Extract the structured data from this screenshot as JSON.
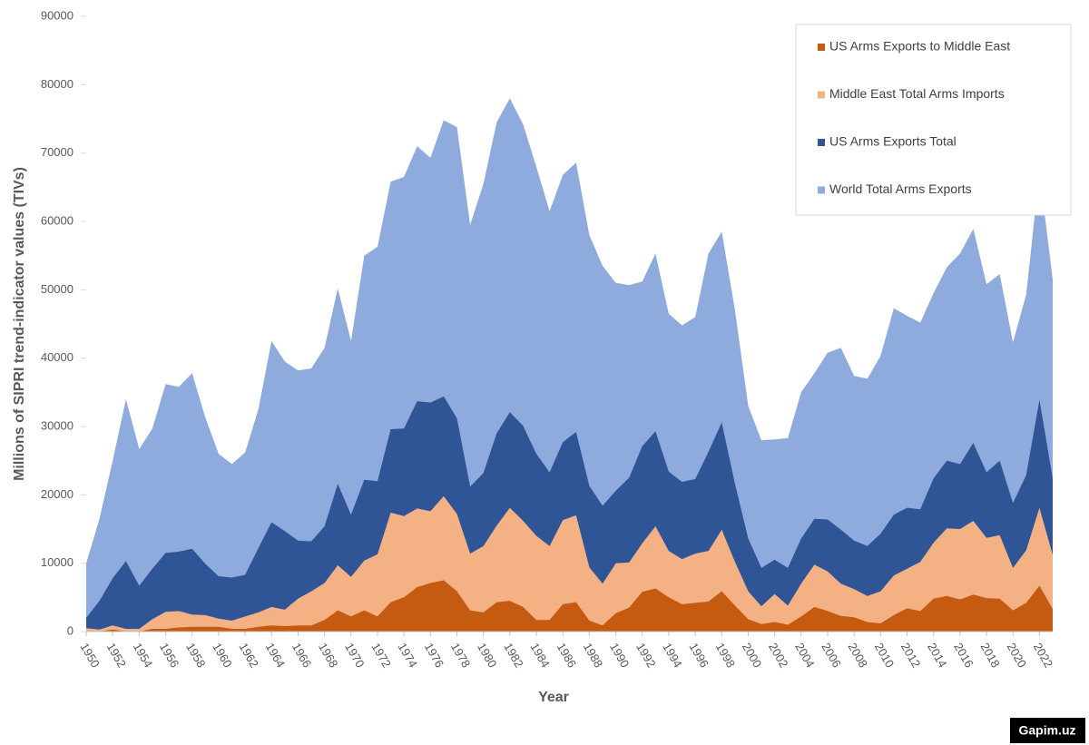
{
  "chart_data": {
    "type": "stacked-area",
    "x_label": "Year",
    "y_label": "Millions of SIPRI trend-indicator values (TIVs)",
    "legend": "top-right",
    "grid": false,
    "xlim": [
      1950,
      2023
    ],
    "xticks": [
      1950,
      1952,
      1954,
      1956,
      1958,
      1960,
      1962,
      1964,
      1966,
      1968,
      1970,
      1972,
      1974,
      1976,
      1978,
      1980,
      1982,
      1984,
      1986,
      1988,
      1990,
      1992,
      1994,
      1996,
      1998,
      2000,
      2002,
      2004,
      2006,
      2008,
      2010,
      2012,
      2014,
      2016,
      2018,
      2020,
      2022
    ],
    "ylim": [
      0,
      90000
    ],
    "yticks": [
      0,
      10000,
      20000,
      30000,
      40000,
      50000,
      60000,
      70000,
      80000,
      90000
    ],
    "x": [
      1950,
      1951,
      1952,
      1953,
      1954,
      1955,
      1956,
      1957,
      1958,
      1959,
      1960,
      1961,
      1962,
      1963,
      1964,
      1965,
      1966,
      1967,
      1968,
      1969,
      1970,
      1971,
      1972,
      1973,
      1974,
      1975,
      1976,
      1977,
      1978,
      1979,
      1980,
      1981,
      1982,
      1983,
      1984,
      1985,
      1986,
      1987,
      1988,
      1989,
      1990,
      1991,
      1992,
      1993,
      1994,
      1995,
      1996,
      1997,
      1998,
      1999,
      2000,
      2001,
      2002,
      2003,
      2004,
      2005,
      2006,
      2007,
      2008,
      2009,
      2010,
      2011,
      2012,
      2013,
      2014,
      2015,
      2016,
      2017,
      2018,
      2019,
      2020,
      2021,
      2022,
      2023
    ],
    "series": [
      {
        "name": "US Arms Exports to Middle East",
        "color": "#c55a11",
        "values": [
          0,
          0,
          300,
          0,
          0,
          400,
          400,
          600,
          700,
          700,
          700,
          400,
          400,
          700,
          900,
          800,
          900,
          900,
          1700,
          3100,
          2200,
          3100,
          2200,
          4300,
          5000,
          6500,
          7100,
          7500,
          5900,
          3100,
          2800,
          4300,
          4500,
          3600,
          1700,
          1700,
          4000,
          4300,
          1600,
          900,
          2700,
          3500,
          5800,
          6300,
          5000,
          4000,
          4200,
          4400,
          5900,
          3800,
          1800,
          1100,
          1400,
          1000,
          2200,
          3600,
          3000,
          2300,
          2100,
          1400,
          1200,
          2400,
          3400,
          3000,
          4800,
          5200,
          4700,
          5400,
          4900,
          4800,
          3100,
          4200,
          6700,
          3300
        ]
      },
      {
        "name": "Middle East Total Arms Imports",
        "color": "#f4b183",
        "values": [
          500,
          300,
          600,
          400,
          400,
          1400,
          2500,
          2400,
          1800,
          1700,
          1200,
          1200,
          1800,
          2100,
          2700,
          2400,
          3900,
          5000,
          5400,
          6600,
          5800,
          7300,
          9100,
          13100,
          11900,
          11500,
          10500,
          12300,
          11300,
          8300,
          9700,
          11200,
          13600,
          12600,
          12300,
          10800,
          12300,
          12700,
          7800,
          6100,
          7300,
          6600,
          7100,
          9100,
          6800,
          6600,
          7200,
          7400,
          9000,
          6400,
          4100,
          2600,
          4100,
          2800,
          4800,
          6200,
          5800,
          4700,
          4100,
          3800,
          4700,
          5800,
          5800,
          7200,
          8200,
          9900,
          10300,
          10800,
          8800,
          9300,
          6200,
          7700,
          11400,
          7900
        ]
      },
      {
        "name": "US Arms Exports Total",
        "color": "#2f5597",
        "values": [
          1500,
          4200,
          6900,
          9900,
          6300,
          7400,
          8600,
          8700,
          9600,
          7500,
          6200,
          6300,
          6100,
          9400,
          12400,
          11500,
          8500,
          7300,
          8300,
          11900,
          9100,
          11800,
          10700,
          12200,
          12800,
          15700,
          15900,
          14600,
          14000,
          9800,
          10700,
          13500,
          14000,
          13900,
          12000,
          10800,
          11400,
          12200,
          11900,
          11400,
          10600,
          12400,
          14200,
          13900,
          11600,
          11300,
          10900,
          14500,
          15700,
          11400,
          7700,
          5600,
          5000,
          5500,
          6600,
          6700,
          7600,
          7900,
          7100,
          7300,
          8400,
          8900,
          8900,
          7700,
          9400,
          9900,
          9500,
          11400,
          9600,
          10900,
          9500,
          11000,
          15800,
          11200
        ]
      },
      {
        "name": "World Total Arms Exports",
        "color": "#8faadc",
        "values": [
          8000,
          12000,
          17200,
          23700,
          20000,
          20500,
          24700,
          24100,
          25700,
          21400,
          17900,
          16600,
          17900,
          20300,
          26500,
          24800,
          24900,
          25300,
          26100,
          28600,
          25400,
          32800,
          34300,
          36200,
          36800,
          37300,
          35800,
          40400,
          42600,
          38300,
          42300,
          45500,
          45900,
          44100,
          42000,
          38200,
          39100,
          39400,
          36700,
          35100,
          30400,
          28200,
          24100,
          26000,
          23100,
          22900,
          23700,
          29000,
          27900,
          25400,
          19400,
          18700,
          17600,
          19000,
          21400,
          21300,
          24400,
          26600,
          24100,
          24500,
          26000,
          30200,
          28100,
          27300,
          27100,
          28300,
          30800,
          31300,
          27500,
          27300,
          23500,
          26400,
          33400,
          29100
        ]
      }
    ]
  },
  "watermark": "Gapim.uz"
}
